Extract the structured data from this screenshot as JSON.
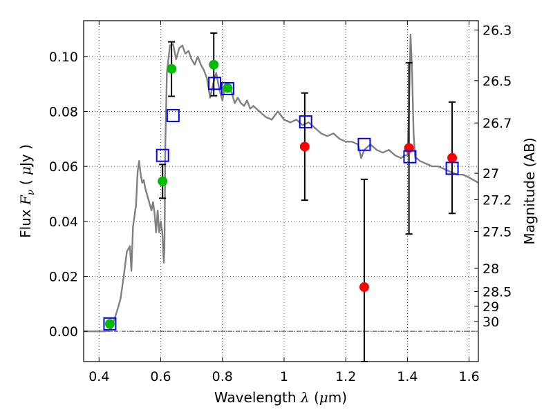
{
  "chart_data": {
    "type": "scatter",
    "xlabel": "Wavelength  λ (μm)",
    "ylabel": "Flux  F_ν  ( μJy )",
    "ylabel_parts": {
      "pre": "Flux  ",
      "var": "F",
      "sub": "ν",
      "mid": "  (  ",
      "mu": "μ",
      "post": "Jy )"
    },
    "xlabel_parts": {
      "pre": "Wavelength  ",
      "var": "λ",
      "mid": " (",
      "mu": "μ",
      "post": "m)"
    },
    "y2label": "Magnitude (AB)",
    "xlim": [
      0.35,
      1.63
    ],
    "ylim": [
      -0.011,
      0.113
    ],
    "grid": true,
    "x_ticks": [
      "0.4",
      "0.6",
      "0.8",
      "1",
      "1.2",
      "1.4",
      "1.6"
    ],
    "x_tick_values": [
      0.4,
      0.6,
      0.8,
      1.0,
      1.2,
      1.4,
      1.6
    ],
    "y_ticks": [
      "0.00",
      "0.02",
      "0.04",
      "0.06",
      "0.08",
      "0.10"
    ],
    "y_tick_values": [
      0.0,
      0.02,
      0.04,
      0.06,
      0.08,
      0.1
    ],
    "mag_ticks": [
      {
        "label": "26.3",
        "flux": 0.1096
      },
      {
        "label": "26.5",
        "flux": 0.0912
      },
      {
        "label": "26.7",
        "flux": 0.0758
      },
      {
        "label": "27",
        "flux": 0.0575
      },
      {
        "label": "27.2",
        "flux": 0.0479
      },
      {
        "label": "27.5",
        "flux": 0.0363
      },
      {
        "label": "28",
        "flux": 0.0229
      },
      {
        "label": "28.5",
        "flux": 0.0145
      },
      {
        "label": "29",
        "flux": 0.0091
      },
      {
        "label": "30",
        "flux": 0.0036
      }
    ],
    "colors": {
      "model": "#808080",
      "box": "#0000ff",
      "green": "#00bb00",
      "red": "#ff0000",
      "errorbar": "#000000",
      "zero_line": "#333333"
    },
    "model_spectrum": {
      "x": [
        0.35,
        0.4,
        0.42,
        0.44,
        0.46,
        0.47,
        0.48,
        0.49,
        0.5,
        0.505,
        0.51,
        0.52,
        0.525,
        0.53,
        0.535,
        0.54,
        0.545,
        0.55,
        0.56,
        0.57,
        0.575,
        0.58,
        0.585,
        0.59,
        0.595,
        0.6,
        0.605,
        0.61,
        0.612,
        0.615,
        0.62,
        0.63,
        0.64,
        0.65,
        0.66,
        0.67,
        0.68,
        0.69,
        0.7,
        0.71,
        0.72,
        0.73,
        0.74,
        0.75,
        0.76,
        0.77,
        0.78,
        0.79,
        0.8,
        0.81,
        0.82,
        0.83,
        0.84,
        0.85,
        0.86,
        0.87,
        0.88,
        0.89,
        0.9,
        0.92,
        0.94,
        0.96,
        0.98,
        1.0,
        1.02,
        1.04,
        1.06,
        1.08,
        1.1,
        1.12,
        1.14,
        1.16,
        1.18,
        1.2,
        1.22,
        1.24,
        1.25,
        1.26,
        1.27,
        1.28,
        1.3,
        1.32,
        1.34,
        1.36,
        1.38,
        1.39,
        1.4,
        1.405,
        1.41,
        1.415,
        1.42,
        1.425,
        1.43,
        1.44,
        1.46,
        1.48,
        1.5,
        1.52,
        1.54,
        1.56,
        1.58,
        1.6,
        1.63
      ],
      "y": [
        0.0,
        0.0,
        0.0,
        0.001,
        0.008,
        0.012,
        0.02,
        0.029,
        0.031,
        0.022,
        0.038,
        0.046,
        0.058,
        0.062,
        0.057,
        0.054,
        0.055,
        0.052,
        0.048,
        0.044,
        0.047,
        0.043,
        0.036,
        0.044,
        0.036,
        0.04,
        0.036,
        0.025,
        0.03,
        0.068,
        0.094,
        0.104,
        0.1045,
        0.099,
        0.103,
        0.104,
        0.101,
        0.102,
        0.099,
        0.097,
        0.1,
        0.097,
        0.095,
        0.092,
        0.085,
        0.09,
        0.094,
        0.088,
        0.084,
        0.09,
        0.088,
        0.087,
        0.083,
        0.085,
        0.083,
        0.082,
        0.084,
        0.081,
        0.082,
        0.08,
        0.078,
        0.077,
        0.08,
        0.077,
        0.076,
        0.077,
        0.075,
        0.076,
        0.074,
        0.072,
        0.071,
        0.072,
        0.07,
        0.069,
        0.069,
        0.068,
        0.063,
        0.066,
        0.067,
        0.068,
        0.066,
        0.065,
        0.066,
        0.064,
        0.063,
        0.064,
        0.064,
        0.08,
        0.108,
        0.095,
        0.072,
        0.063,
        0.063,
        0.062,
        0.061,
        0.06,
        0.06,
        0.059,
        0.058,
        0.057,
        0.057,
        0.056,
        0.054
      ]
    },
    "boxes": [
      {
        "x": 0.435,
        "y": 0.0027
      },
      {
        "x": 0.606,
        "y": 0.064
      },
      {
        "x": 0.64,
        "y": 0.0785
      },
      {
        "x": 0.775,
        "y": 0.0902
      },
      {
        "x": 0.817,
        "y": 0.0883
      },
      {
        "x": 1.07,
        "y": 0.0762
      },
      {
        "x": 1.26,
        "y": 0.068
      },
      {
        "x": 1.408,
        "y": 0.0635
      },
      {
        "x": 1.545,
        "y": 0.0593
      }
    ],
    "green_points": [
      {
        "x": 0.435,
        "y": 0.0027
      },
      {
        "x": 0.606,
        "y": 0.0546
      },
      {
        "x": 0.635,
        "y": 0.0955
      },
      {
        "x": 0.772,
        "y": 0.097
      },
      {
        "x": 0.817,
        "y": 0.0885
      }
    ],
    "red_points": [
      {
        "x": 1.067,
        "y": 0.0672
      },
      {
        "x": 1.26,
        "y": 0.0161
      },
      {
        "x": 1.405,
        "y": 0.0667
      },
      {
        "x": 1.545,
        "y": 0.0631
      }
    ],
    "error_bars": [
      {
        "x": 0.606,
        "low": 0.0484,
        "high": 0.0607
      },
      {
        "x": 0.635,
        "low": 0.0855,
        "high": 0.1053
      },
      {
        "x": 0.772,
        "low": 0.0857,
        "high": 0.1085
      },
      {
        "x": 1.067,
        "low": 0.0477,
        "high": 0.0867
      },
      {
        "x": 1.26,
        "low": -0.011,
        "high": 0.0553
      },
      {
        "x": 1.405,
        "low": 0.0354,
        "high": 0.0977
      },
      {
        "x": 1.545,
        "low": 0.0429,
        "high": 0.0834
      }
    ]
  }
}
